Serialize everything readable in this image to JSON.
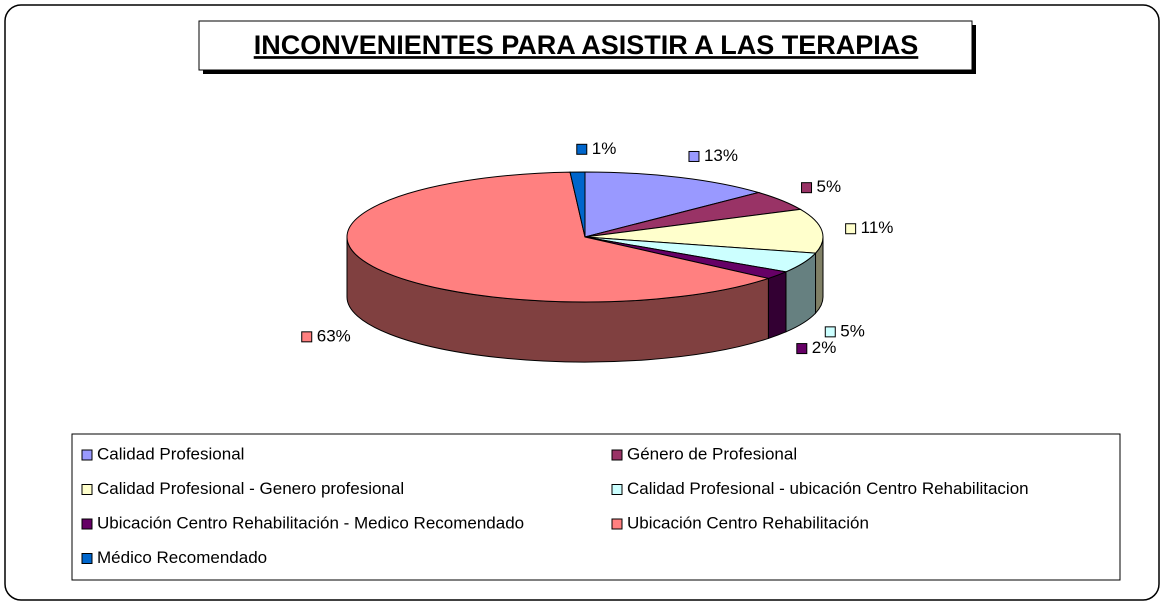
{
  "chart_data": {
    "type": "pie3d",
    "title": "INCONVENIENTES PARA ASISTIR A LAS TERAPIAS",
    "categories": [
      "Calidad Profesional",
      "Género de Profesional",
      "Calidad Profesional - Genero profesional",
      "Calidad Profesional - ubicación Centro Rehabilitacion",
      "Ubicación Centro Rehabilitación - Medico Recomendado",
      "Ubicación Centro Rehabilitación",
      "Médico Recomendado"
    ],
    "values": [
      13,
      5,
      11,
      5,
      2,
      63,
      1
    ],
    "value_labels": [
      "13%",
      "5%",
      "11%",
      "5%",
      "2%",
      "63%",
      "1%"
    ],
    "colors": [
      "#9999ff",
      "#993366",
      "#ffffcc",
      "#ccffff",
      "#660066",
      "#ff8080",
      "#0066cc"
    ],
    "legend": "bottom"
  }
}
